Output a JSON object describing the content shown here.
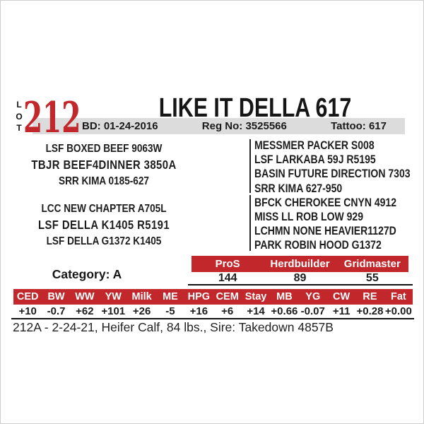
{
  "lot": {
    "label": "LOT",
    "number": "212"
  },
  "title": "LIKE IT DELLA 617",
  "info_bar": {
    "bd": "BD: 01-24-2016",
    "reg": "Reg No: 3525566",
    "tattoo": "Tattoo: 617"
  },
  "pedigree": {
    "sire_group": {
      "top": "LSF BOXED BEEF 9063W",
      "main": "TBJR BEEF4DINNER 3850A",
      "bottom": "SRR KIMA 0185-627"
    },
    "dam_group": {
      "top": "LCC NEW CHAPTER A705L",
      "main": "LSF DELLA K1405 R5191",
      "bottom": "LSF DELLA G1372 K1405"
    },
    "ancestors": [
      "MESSMER PACKER S008",
      "LSF LARKABA 59J R5195",
      "BASIN FUTURE DIRECTION 7303",
      "SRR KIMA 627-950",
      "BFCK CHEROKEE CNYN 4912",
      "MISS LL ROB LOW 929",
      "LCHMN NONE HEAVIER1127D",
      "PARK ROBIN HOOD G1372"
    ]
  },
  "category": "Category: A",
  "index_table": {
    "headers": [
      "ProS",
      "Herdbuilder",
      "Gridmaster"
    ],
    "values": [
      "144",
      "89",
      "55"
    ]
  },
  "epd_table": {
    "headers": [
      "CED",
      "BW",
      "WW",
      "YW",
      "Milk",
      "ME",
      "HPG",
      "CEM",
      "Stay",
      "MB",
      "YG",
      "CW",
      "RE",
      "Fat"
    ],
    "values": [
      "+10",
      "-0.7",
      "+62",
      "+101",
      "+26",
      "-5",
      "+16",
      "+6",
      "+14",
      "+0.66",
      "-0.07",
      "+11",
      "+0.28",
      "+0.00"
    ]
  },
  "footnote": "212A - 2-24-21, Heifer Calf, 84 lbs., Sire: Takedown 4857B",
  "colors": {
    "accent_red": "#c2272b",
    "bar_gray": "#dcdcdc"
  }
}
